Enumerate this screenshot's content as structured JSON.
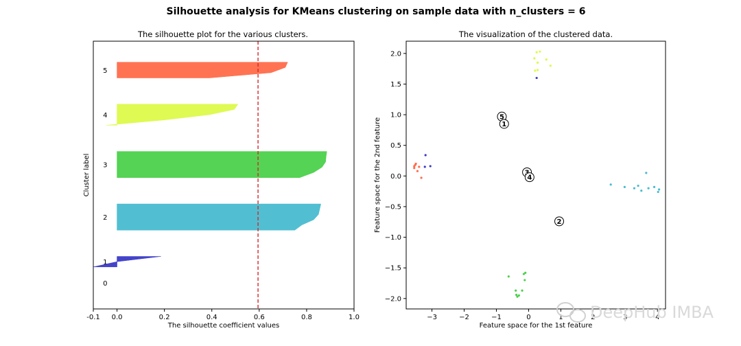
{
  "figure": {
    "suptitle": "Silhouette analysis for KMeans clustering on sample data with n_clusters = 6",
    "watermark": "DeepHub IMBA"
  },
  "chart_data": [
    {
      "type": "area",
      "title": "The silhouette plot for the various clusters.",
      "xlabel": "The silhouette coefficient values",
      "ylabel": "Cluster label",
      "xlim": [
        -0.1,
        1.0
      ],
      "ylim": [
        0,
        51
      ],
      "xticks": [
        "-0.1",
        "0.0",
        "0.2",
        "0.4",
        "0.6",
        "0.8",
        "1.0"
      ],
      "xtick_values": [
        -0.1,
        0.0,
        0.2,
        0.4,
        0.6,
        0.8,
        1.0
      ],
      "average_silhouette_line": 0.595,
      "average_line_color": "#d62728",
      "clusters": [
        {
          "label": "0",
          "lower": 5,
          "upper": 5,
          "color": "#000000",
          "values": []
        },
        {
          "label": "1",
          "lower": 8,
          "upper": 10,
          "color": "#3a3ac8",
          "values": [
            0.185,
            0.0,
            -0.1
          ]
        },
        {
          "label": "2",
          "lower": 15,
          "upper": 20,
          "color": "#48bccf",
          "values": [
            0.86,
            0.855,
            0.85,
            0.83,
            0.78,
            0.75
          ]
        },
        {
          "label": "3",
          "lower": 25,
          "upper": 30,
          "color": "#4bd14b",
          "values": [
            0.885,
            0.882,
            0.88,
            0.865,
            0.83,
            0.77
          ]
        },
        {
          "label": "4",
          "lower": 35,
          "upper": 39,
          "color": "#dcfa4a",
          "values": [
            0.51,
            0.495,
            0.39,
            0.2,
            -0.045
          ]
        },
        {
          "label": "5",
          "lower": 44,
          "upper": 47,
          "color": "#ff6c4a",
          "values": [
            0.72,
            0.71,
            0.65,
            0.39
          ]
        }
      ]
    },
    {
      "type": "scatter",
      "title": "The visualization of the clustered data.",
      "xlabel": "Feature space for the 1st feature",
      "ylabel": "Feature space for the 2nd feature",
      "xlim": [
        -3.8,
        4.25
      ],
      "ylim": [
        -2.17,
        2.2
      ],
      "xticks": [
        -3,
        -2,
        -1,
        0,
        1,
        2,
        3,
        4
      ],
      "xtick_labels": [
        "−3",
        "−2",
        "−1",
        "0",
        "1",
        "2",
        "3",
        "4"
      ],
      "yticks": [
        -2.0,
        -1.5,
        -1.0,
        -0.5,
        0.0,
        0.5,
        1.0,
        1.5,
        2.0
      ],
      "ytick_labels": [
        "−2.0",
        "−1.5",
        "−1.0",
        "−0.5",
        "0.0",
        "0.5",
        "1.0",
        "1.5",
        "2.0"
      ],
      "points": [
        {
          "x": -3.55,
          "y": 0.13,
          "color": "#ff6c4a"
        },
        {
          "x": -3.52,
          "y": 0.18,
          "color": "#ff6c4a"
        },
        {
          "x": -3.5,
          "y": 0.2,
          "color": "#ff6c4a"
        },
        {
          "x": -3.45,
          "y": 0.08,
          "color": "#ff6c4a"
        },
        {
          "x": -3.4,
          "y": 0.15,
          "color": "#ff6c4a"
        },
        {
          "x": -3.33,
          "y": -0.03,
          "color": "#ff6c4a"
        },
        {
          "x": -3.55,
          "y": 0.16,
          "color": "#ff6c4a"
        },
        {
          "x": -3.2,
          "y": 0.34,
          "color": "#3a3ac8"
        },
        {
          "x": -3.22,
          "y": 0.15,
          "color": "#3a3ac8"
        },
        {
          "x": -3.05,
          "y": 0.16,
          "color": "#3a3ac8"
        },
        {
          "x": 0.25,
          "y": 1.6,
          "color": "#3a3ac8"
        },
        {
          "x": 0.25,
          "y": 2.02,
          "color": "#dcfa4a"
        },
        {
          "x": 0.35,
          "y": 2.03,
          "color": "#dcfa4a"
        },
        {
          "x": 0.18,
          "y": 1.92,
          "color": "#dcfa4a"
        },
        {
          "x": 0.55,
          "y": 1.9,
          "color": "#dcfa4a"
        },
        {
          "x": 0.28,
          "y": 1.85,
          "color": "#dcfa4a"
        },
        {
          "x": 0.68,
          "y": 1.8,
          "color": "#dcfa4a"
        },
        {
          "x": 0.2,
          "y": 1.72,
          "color": "#dcfa4a"
        },
        {
          "x": 0.28,
          "y": 1.73,
          "color": "#dcfa4a"
        },
        {
          "x": 2.55,
          "y": -0.14,
          "color": "#48bccf"
        },
        {
          "x": 2.98,
          "y": -0.18,
          "color": "#48bccf"
        },
        {
          "x": 3.28,
          "y": -0.2,
          "color": "#48bccf"
        },
        {
          "x": 3.4,
          "y": -0.16,
          "color": "#48bccf"
        },
        {
          "x": 3.5,
          "y": -0.24,
          "color": "#48bccf"
        },
        {
          "x": 3.65,
          "y": 0.05,
          "color": "#48bccf"
        },
        {
          "x": 3.72,
          "y": -0.2,
          "color": "#48bccf"
        },
        {
          "x": 3.9,
          "y": -0.18,
          "color": "#48bccf"
        },
        {
          "x": 4.05,
          "y": -0.22,
          "color": "#48bccf"
        },
        {
          "x": 4.02,
          "y": -0.26,
          "color": "#48bccf"
        },
        {
          "x": -0.62,
          "y": -1.64,
          "color": "#4bd14b"
        },
        {
          "x": -0.15,
          "y": -1.6,
          "color": "#4bd14b"
        },
        {
          "x": -0.1,
          "y": -1.58,
          "color": "#4bd14b"
        },
        {
          "x": -0.12,
          "y": -1.7,
          "color": "#4bd14b"
        },
        {
          "x": -0.4,
          "y": -1.87,
          "color": "#4bd14b"
        },
        {
          "x": -0.2,
          "y": -1.87,
          "color": "#4bd14b"
        },
        {
          "x": -0.38,
          "y": -1.94,
          "color": "#4bd14b"
        },
        {
          "x": -0.3,
          "y": -1.95,
          "color": "#4bd14b"
        },
        {
          "x": -0.35,
          "y": -1.97,
          "color": "#4bd14b"
        }
      ],
      "centers": [
        {
          "label": "5",
          "x": -0.83,
          "y": 0.97
        },
        {
          "label": "1",
          "x": -0.76,
          "y": 0.85
        },
        {
          "label": "3",
          "x": -0.05,
          "y": 0.06
        },
        {
          "label": "4",
          "x": 0.03,
          "y": -0.02
        },
        {
          "label": "2",
          "x": 0.95,
          "y": -0.74
        }
      ]
    }
  ]
}
